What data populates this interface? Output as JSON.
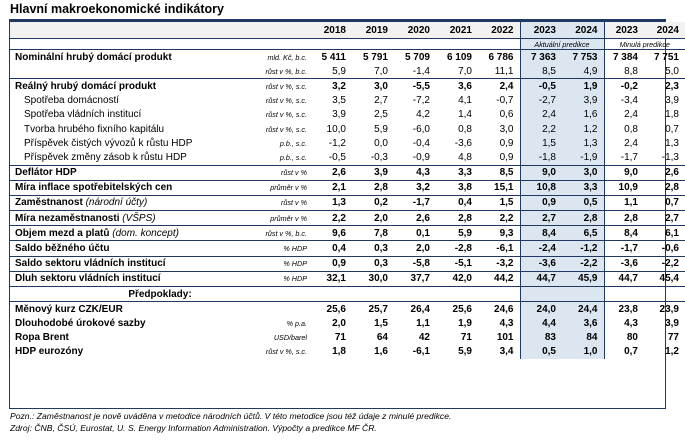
{
  "title": "Hlavní makroekonomické indikátory",
  "years": [
    "2018",
    "2019",
    "2020",
    "2021",
    "2022",
    "2023",
    "2024",
    "2023",
    "2024"
  ],
  "subheaders": {
    "current": "Aktuální predikce",
    "previous": "Minulá predikce"
  },
  "rows": [
    {
      "label": "Nominální hrubý domácí produkt",
      "unit": "mld. Kč, b.c.",
      "vals": [
        "5 411",
        "5 791",
        "5 709",
        "6 109",
        "6 786",
        "7 363",
        "7 753",
        "7 384",
        "7 751"
      ]
    },
    {
      "label": "",
      "unit": "růst v %, b.c.",
      "vals": [
        "5,9",
        "7,0",
        "-1,4",
        "7,0",
        "11,1",
        "8,5",
        "4,9",
        "8,8",
        "5,0"
      ]
    },
    {
      "label": "Reálný hrubý domácí produkt",
      "unit": "růst v %, s.c.",
      "vals": [
        "3,2",
        "3,0",
        "-5,5",
        "3,6",
        "2,4",
        "-0,5",
        "1,9",
        "-0,2",
        "2,3"
      ]
    },
    {
      "label": "Spotřeba domácností",
      "unit": "růst v %, s.c.",
      "vals": [
        "3,5",
        "2,7",
        "-7,2",
        "4,1",
        "-0,7",
        "-2,7",
        "3,9",
        "-3,4",
        "3,9"
      ]
    },
    {
      "label": "Spotřeba vládních institucí",
      "unit": "růst v %, s.c.",
      "vals": [
        "3,9",
        "2,5",
        "4,2",
        "1,4",
        "0,6",
        "2,4",
        "1,6",
        "2,4",
        "1,8"
      ]
    },
    {
      "label": "Tvorba hrubého fixního kapitálu",
      "unit": "růst v %, s.c.",
      "vals": [
        "10,0",
        "5,9",
        "-6,0",
        "0,8",
        "3,0",
        "2,2",
        "1,2",
        "0,8",
        "0,7"
      ]
    },
    {
      "label": "Příspěvek čistých vývozů k růstu HDP",
      "unit": "p.b., s.c.",
      "vals": [
        "-1,2",
        "0,0",
        "-0,4",
        "-3,6",
        "0,9",
        "1,5",
        "1,3",
        "2,4",
        "1,3"
      ]
    },
    {
      "label": "Příspěvek změny zásob k růstu HDP",
      "unit": "p.b., s.c.",
      "vals": [
        "-0,5",
        "-0,3",
        "-0,9",
        "4,8",
        "0,9",
        "-1,8",
        "-1,9",
        "-1,7",
        "-1,3"
      ]
    },
    {
      "label": "Deflátor HDP",
      "unit": "růst v %",
      "vals": [
        "2,6",
        "3,9",
        "4,3",
        "3,3",
        "8,5",
        "9,0",
        "3,0",
        "9,0",
        "2,6"
      ]
    },
    {
      "label": "Míra inflace spotřebitelských cen",
      "unit": "průměr v %",
      "vals": [
        "2,1",
        "2,8",
        "3,2",
        "3,8",
        "15,1",
        "10,8",
        "3,3",
        "10,9",
        "2,8"
      ]
    },
    {
      "label": "Zaměstnanost",
      "label_note": "(národní účty)",
      "unit": "růst v %",
      "vals": [
        "1,3",
        "0,2",
        "-1,7",
        "0,4",
        "1,5",
        "0,9",
        "0,5",
        "1,1",
        "0,7"
      ]
    },
    {
      "label": "Míra nezaměstnanosti",
      "label_note": "(VŠPS)",
      "unit": "průměr v %",
      "vals": [
        "2,2",
        "2,0",
        "2,6",
        "2,8",
        "2,2",
        "2,7",
        "2,8",
        "2,8",
        "2,7"
      ]
    },
    {
      "label": "Objem mezd a platů",
      "label_note": "(dom. koncept)",
      "unit": "růst v %, b.c.",
      "vals": [
        "9,6",
        "7,8",
        "0,1",
        "5,9",
        "9,3",
        "8,4",
        "6,5",
        "8,4",
        "6,1"
      ]
    },
    {
      "label": "Saldo běžného účtu",
      "unit": "% HDP",
      "vals": [
        "0,4",
        "0,3",
        "2,0",
        "-2,8",
        "-6,1",
        "-2,4",
        "-1,2",
        "-1,7",
        "-0,6"
      ]
    },
    {
      "label": "Saldo sektoru vládních institucí",
      "unit": "% HDP",
      "vals": [
        "0,9",
        "0,3",
        "-5,8",
        "-5,1",
        "-3,2",
        "-3,6",
        "-2,2",
        "-3,6",
        "-2,2"
      ]
    },
    {
      "label": "Dluh sektoru vládních institucí",
      "unit": "% HDP",
      "vals": [
        "32,1",
        "30,0",
        "37,7",
        "42,0",
        "44,2",
        "44,7",
        "45,9",
        "44,7",
        "45,4"
      ]
    },
    {
      "label": "Měnový kurz CZK/EUR",
      "unit": "",
      "vals": [
        "25,6",
        "25,7",
        "26,4",
        "25,6",
        "24,6",
        "24,0",
        "24,4",
        "23,8",
        "23,9"
      ]
    },
    {
      "label": "Dlouhodobé úrokové sazby",
      "unit": "% p.a.",
      "vals": [
        "2,0",
        "1,5",
        "1,1",
        "1,9",
        "4,3",
        "4,4",
        "3,6",
        "4,3",
        "3,9"
      ]
    },
    {
      "label": "Ropa Brent",
      "unit": "USD/barel",
      "vals": [
        "71",
        "64",
        "42",
        "71",
        "101",
        "83",
        "84",
        "80",
        "77"
      ]
    },
    {
      "label": "HDP eurozóny",
      "unit": "růst v %, s.c.",
      "vals": [
        "1,8",
        "1,6",
        "-6,1",
        "5,9",
        "3,4",
        "0,5",
        "1,0",
        "0,7",
        "1,2"
      ]
    }
  ],
  "assumptions_label": "Předpoklady:",
  "notes": [
    "Pozn.: Zaměstnanost je nově uváděna v metodice národních účtů. V této metodice jsou též údaje z minulé predikce.",
    "Zdroj: ČNB, ČSÚ, Eurostat, U. S. Energy Information Administration. Výpočty a predikce MF ČR."
  ]
}
